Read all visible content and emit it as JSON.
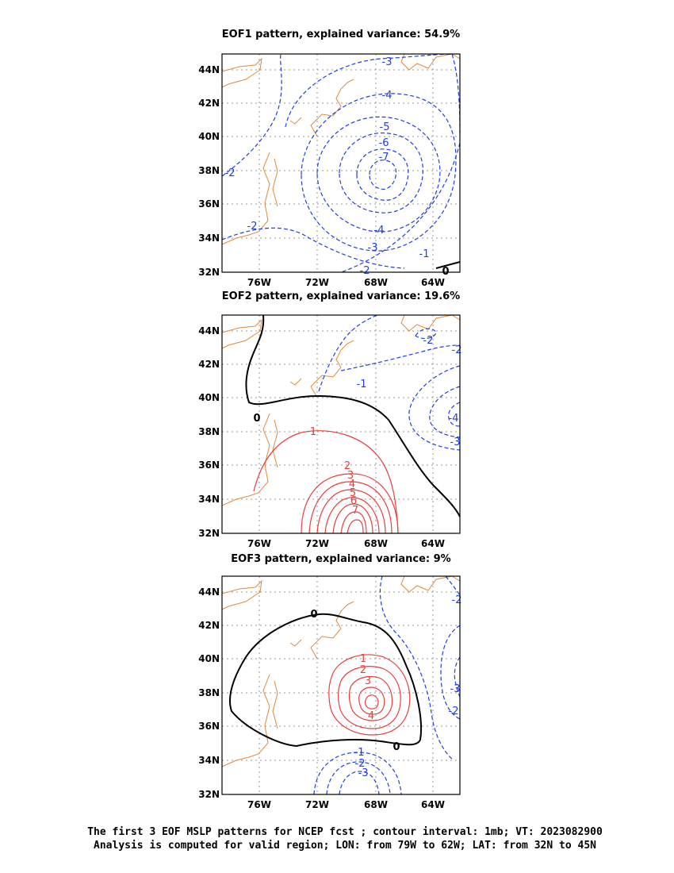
{
  "panels": [
    {
      "title": "EOF1 pattern, explained variance: 54.9%",
      "lat_ticks": [
        "44N",
        "42N",
        "40N",
        "38N",
        "36N",
        "34N",
        "32N"
      ],
      "lon_ticks": [
        "76W",
        "72W",
        "68W",
        "64W"
      ],
      "contour_labels": [
        "-3",
        "-4",
        "-5",
        "-6",
        "-7",
        "-2",
        "-2",
        "-4",
        "-3",
        "-1",
        "-2",
        "0"
      ]
    },
    {
      "title": "EOF2 pattern, explained variance: 19.6%",
      "lat_ticks": [
        "44N",
        "42N",
        "40N",
        "38N",
        "36N",
        "34N",
        "32N"
      ],
      "lon_ticks": [
        "76W",
        "72W",
        "68W",
        "64W"
      ],
      "contour_labels": [
        "-1",
        "-2",
        "-2",
        "0",
        "1",
        "2",
        "3",
        "4",
        "5",
        "6",
        "7",
        "-4",
        "-3"
      ]
    },
    {
      "title": "EOF3 pattern, explained variance: 9%",
      "lat_ticks": [
        "44N",
        "42N",
        "40N",
        "38N",
        "36N",
        "34N",
        "32N"
      ],
      "lon_ticks": [
        "76W",
        "72W",
        "68W",
        "64W"
      ],
      "contour_labels": [
        "0",
        "1",
        "2",
        "3",
        "4",
        "0",
        "-1",
        "-2",
        "-3",
        "-2",
        "-3",
        "-2"
      ]
    }
  ],
  "caption": {
    "line1": "The first 3 EOF MSLP patterns for NCEP fcst ; contour interval: 1mb; VT: 2023082900",
    "line2": "Analysis is computed for valid region; LON: from 79W to 62W; LAT: from 32N to 45N"
  },
  "colors": {
    "positive": "#e8403c",
    "negative": "#1f3fe0",
    "zero": "#000000",
    "coast": "#e08a3c",
    "grid": "#9a9a9a"
  }
}
